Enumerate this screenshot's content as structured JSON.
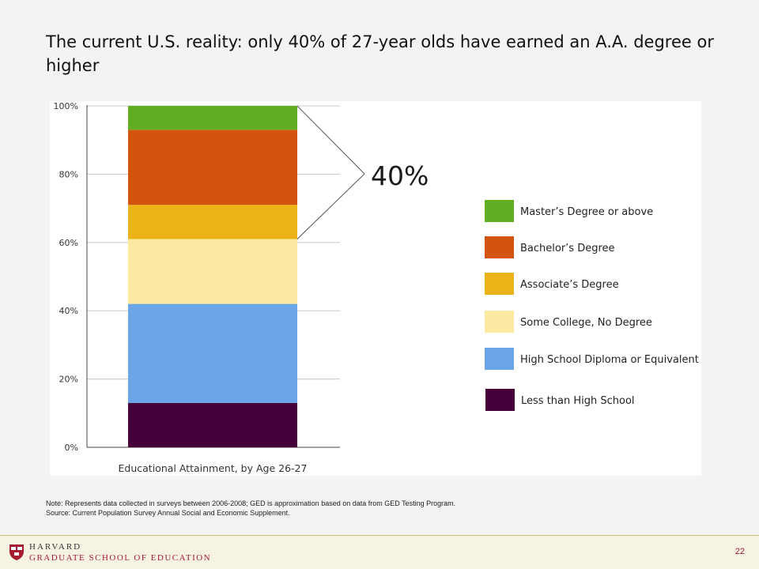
{
  "slide": {
    "title": "The current U.S. reality: only 40% of 27-year olds have earned an A.A. degree or higher",
    "note_line1": "Note: Represents data collected in surveys between 2006-2008; GED is approximation based on data from GED Testing Program.",
    "note_line2": "Source: Current Population Survey Annual Social and Economic Supplement.",
    "footer_line1": "HARVARD",
    "footer_line2": "GRADUATE SCHOOL OF EDUCATION",
    "page_number": "22"
  },
  "chart_data": {
    "type": "bar",
    "stacked": true,
    "xlabel": "Educational Attainment, by Age 26-27",
    "ylim": [
      0,
      100
    ],
    "y_ticks": [
      "0%",
      "20%",
      "40%",
      "60%",
      "80%",
      "100%"
    ],
    "grid": true,
    "legend_position": "right",
    "series": [
      {
        "name": "Less than High School",
        "value": 13,
        "color": "#45003a"
      },
      {
        "name": "High School Diploma or Equivalent",
        "value": 29,
        "color": "#6ba5e8"
      },
      {
        "name": "Some College, No Degree",
        "value": 19,
        "color": "#fde9a2"
      },
      {
        "name": "Associate’s Degree",
        "value": 10,
        "color": "#eab418"
      },
      {
        "name": "Bachelor’s Degree",
        "value": 22,
        "color": "#d3540e"
      },
      {
        "name": "Master’s Degree or above",
        "value": 7,
        "color": "#62ad21"
      }
    ],
    "annotation": {
      "text": "40%",
      "from": 61,
      "to": 100
    }
  }
}
